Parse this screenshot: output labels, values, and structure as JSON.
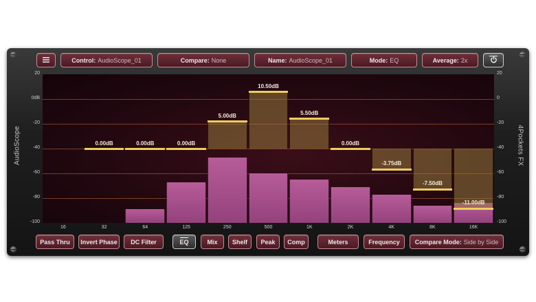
{
  "side_labels": {
    "left": "AudioScope",
    "right": "4Pockets FX"
  },
  "top_bar": {
    "menu_icon": "hamburger-menu-icon",
    "control": {
      "label": "Control:",
      "value": "AudioScope_01"
    },
    "compare": {
      "label": "Compare:",
      "value": "None"
    },
    "name": {
      "label": "Name:",
      "value": "AudioScope_01"
    },
    "mode": {
      "label": "Mode:",
      "value": "EQ"
    },
    "average": {
      "label": "Average:",
      "value": "2x"
    },
    "power_icon": "power-icon"
  },
  "y_axis_left": [
    "20",
    "0dB",
    "-20",
    "-40",
    "-60",
    "-80",
    "-100"
  ],
  "y_axis_right": [
    "20",
    "0",
    "-20",
    "-40",
    "-60",
    "-80",
    "-100"
  ],
  "chart_data": {
    "type": "bar",
    "categories": [
      "16",
      "32",
      "64",
      "125",
      "250",
      "500",
      "1K",
      "2K",
      "4K",
      "8K",
      "16K"
    ],
    "ylim": [
      -100,
      20
    ],
    "series": [
      {
        "values": [
          -100,
          -100,
          -89,
          -67,
          -47,
          -60,
          -65,
          -71,
          -77,
          -86,
          -84
        ]
      },
      {
        "values": [
          null,
          0.0,
          0.0,
          0.0,
          5.0,
          10.5,
          5.5,
          0.0,
          -3.75,
          -7.5,
          -11.0
        ]
      }
    ],
    "eq_labels": [
      "",
      "0.00dB",
      "0.00dB",
      "0.00dB",
      "5.00dB",
      "10.50dB",
      "5.50dB",
      "0.00dB",
      "-3.75dB",
      "-7.50dB",
      "-11.00dB"
    ]
  },
  "bottom_bar": {
    "pass_thru": "Pass Thru",
    "invert_phase": "Invert Phase",
    "dc_filter": "DC Filter",
    "eq": "EQ",
    "mix": "Mix",
    "shelf": "Shelf",
    "peak": "Peak",
    "comp": "Comp",
    "meters": "Meters",
    "frequency": "Frequency",
    "compare_mode": {
      "label": "Compare Mode:",
      "value": "Side by Side"
    }
  },
  "colors": {
    "button_fill": "#5e2530",
    "button_border": "#c98a93",
    "spectrum": "#a94f8c",
    "eq_cap": "#f0cd5e",
    "grid": "#be6e3c"
  }
}
